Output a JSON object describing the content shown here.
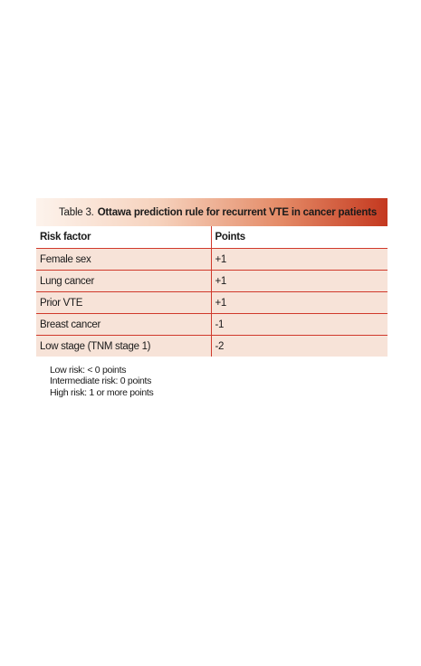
{
  "caption": {
    "prefix": "Table 3.",
    "title": "Ottawa prediction rule for recurrent VTE in cancer patients"
  },
  "table": {
    "headers": [
      "Risk factor",
      "Points"
    ],
    "rows": [
      [
        "Female sex",
        "+1"
      ],
      [
        "Lung cancer",
        "+1"
      ],
      [
        "Prior VTE",
        "+1"
      ],
      [
        "Breast cancer",
        "-1"
      ],
      [
        "Low stage (TNM stage 1)",
        "-2"
      ]
    ]
  },
  "notes": [
    "Low risk: < 0 points",
    "Intermediate risk: 0 points",
    "High risk: 1 or more points"
  ],
  "colors": {
    "accent": "#d0392b",
    "row_fill": "#f7e3d8",
    "caption_gradient_end": "#c4381f"
  }
}
